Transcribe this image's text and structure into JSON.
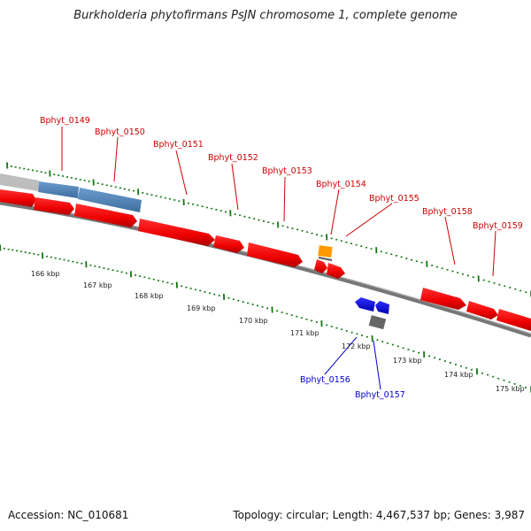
{
  "title": "Burkholderia phytofirmans PsJN chromosome 1, complete genome",
  "footer": {
    "accession": "Accession: NC_010681",
    "summary": "Topology: circular; Length: 4,467,537 bp; Genes: 3,987"
  },
  "colors": {
    "forward_gene": "#ee0000",
    "forward_label": "#cc0000",
    "reverse_gene": "#0000ee",
    "reverse_label": "#0000cc",
    "rna_gene": "#4a7fb5",
    "pseudo_gene": "#bdbdbd",
    "orange_feature": "#ff9900",
    "grey_feature": "#666666",
    "backbone": "#777777",
    "tick": "#117711"
  },
  "scale_labels": [
    "166 kbp",
    "167 kbp",
    "168 kbp",
    "169 kbp",
    "170 kbp",
    "171 kbp",
    "172 kbp",
    "173 kbp",
    "174 kbp",
    "175 kbp"
  ],
  "gene_labels": [
    {
      "text": "Bphyt_0149",
      "strand": "forward"
    },
    {
      "text": "Bphyt_0150",
      "strand": "forward"
    },
    {
      "text": "Bphyt_0151",
      "strand": "forward"
    },
    {
      "text": "Bphyt_0152",
      "strand": "forward"
    },
    {
      "text": "Bphyt_0153",
      "strand": "forward"
    },
    {
      "text": "Bphyt_0154",
      "strand": "forward"
    },
    {
      "text": "Bphyt_0155",
      "strand": "forward"
    },
    {
      "text": "Bphyt_0158",
      "strand": "forward"
    },
    {
      "text": "Bphyt_0159",
      "strand": "forward"
    },
    {
      "text": "Bphyt_0156",
      "strand": "reverse"
    },
    {
      "text": "Bphyt_0157",
      "strand": "reverse"
    }
  ]
}
